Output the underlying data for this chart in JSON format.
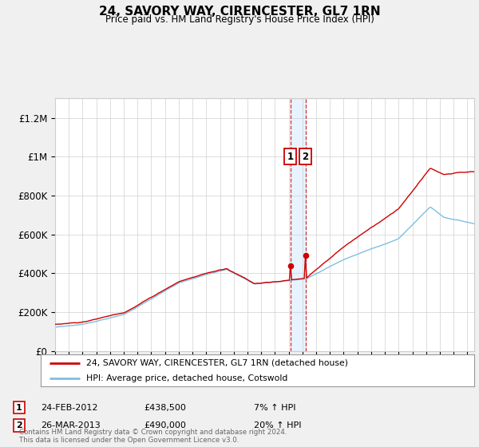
{
  "title": "24, SAVORY WAY, CIRENCESTER, GL7 1RN",
  "subtitle": "Price paid vs. HM Land Registry's House Price Index (HPI)",
  "legend_line1": "24, SAVORY WAY, CIRENCESTER, GL7 1RN (detached house)",
  "legend_line2": "HPI: Average price, detached house, Cotswold",
  "annotation1_date": "24-FEB-2012",
  "annotation1_price": "£438,500",
  "annotation1_hpi": "7% ↑ HPI",
  "annotation2_date": "26-MAR-2013",
  "annotation2_price": "£490,000",
  "annotation2_hpi": "20% ↑ HPI",
  "footer": "Contains HM Land Registry data © Crown copyright and database right 2024.\nThis data is licensed under the Open Government Licence v3.0.",
  "hpi_color": "#7fbfdf",
  "price_color": "#cc0000",
  "dot_color": "#cc0000",
  "vline_color": "#cc0000",
  "shade_color": "#ddeeff",
  "bg_color": "#f0f0f0",
  "plot_bg": "#ffffff",
  "ylim": [
    0,
    1300000
  ],
  "yticks": [
    0,
    200000,
    400000,
    600000,
    800000,
    1000000,
    1200000
  ],
  "ytick_labels": [
    "£0",
    "£200K",
    "£400K",
    "£600K",
    "£800K",
    "£1M",
    "£1.2M"
  ],
  "sale1_year": 2012.12,
  "sale1_price": 438500,
  "sale2_year": 2013.22,
  "sale2_price": 490000,
  "start_year": 1995,
  "end_year": 2025.5
}
